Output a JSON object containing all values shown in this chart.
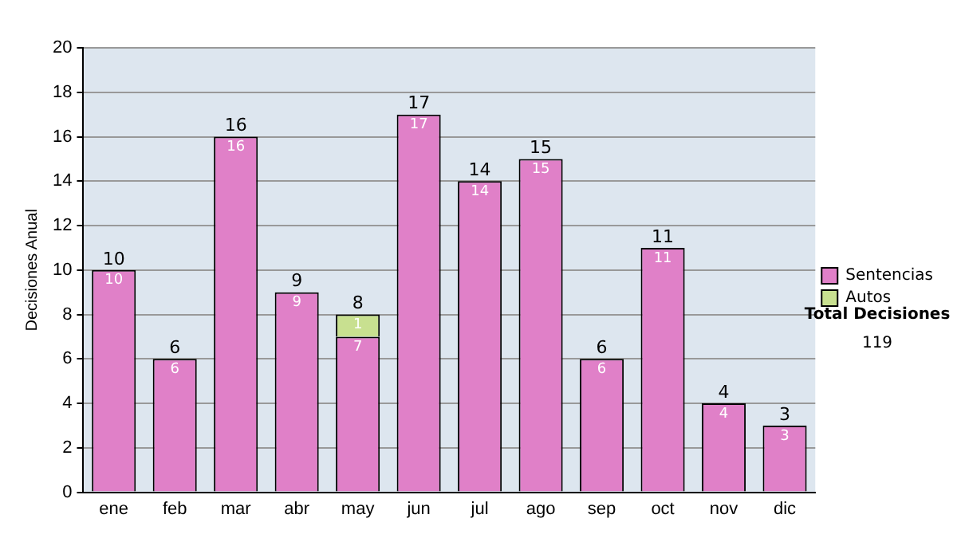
{
  "chart_data": {
    "type": "bar",
    "stacked": true,
    "ylabel": "Decisiones Anual",
    "categories": [
      "ene",
      "feb",
      "mar",
      "abr",
      "may",
      "jun",
      "jul",
      "ago",
      "sep",
      "oct",
      "nov",
      "dic"
    ],
    "series": [
      {
        "name": "Sentencias",
        "color": "#e080c8",
        "values": [
          10,
          6,
          16,
          9,
          7,
          17,
          14,
          15,
          6,
          11,
          4,
          3
        ],
        "value_labels": [
          "10",
          "6",
          "16",
          "9",
          "7",
          "17",
          "14",
          "15",
          "6",
          "11",
          "4",
          "3"
        ]
      },
      {
        "name": "Autos",
        "color": "#c8e090",
        "values": [
          0,
          0,
          0,
          0,
          1,
          0,
          0,
          0,
          0,
          0,
          0,
          0
        ],
        "value_labels": [
          null,
          null,
          null,
          null,
          "1",
          null,
          null,
          null,
          null,
          null,
          null,
          null
        ]
      }
    ],
    "totals": [
      "10",
      "6",
      "16",
      "9",
      "8",
      "17",
      "14",
      "15",
      "6",
      "11",
      "4",
      "3"
    ],
    "ylim": [
      0,
      20
    ],
    "yticks": [
      0,
      2,
      4,
      6,
      8,
      10,
      12,
      14,
      16,
      18,
      20
    ],
    "grid": "y",
    "legend": "right",
    "annotations": [
      "Total Decisiones",
      "119"
    ]
  }
}
